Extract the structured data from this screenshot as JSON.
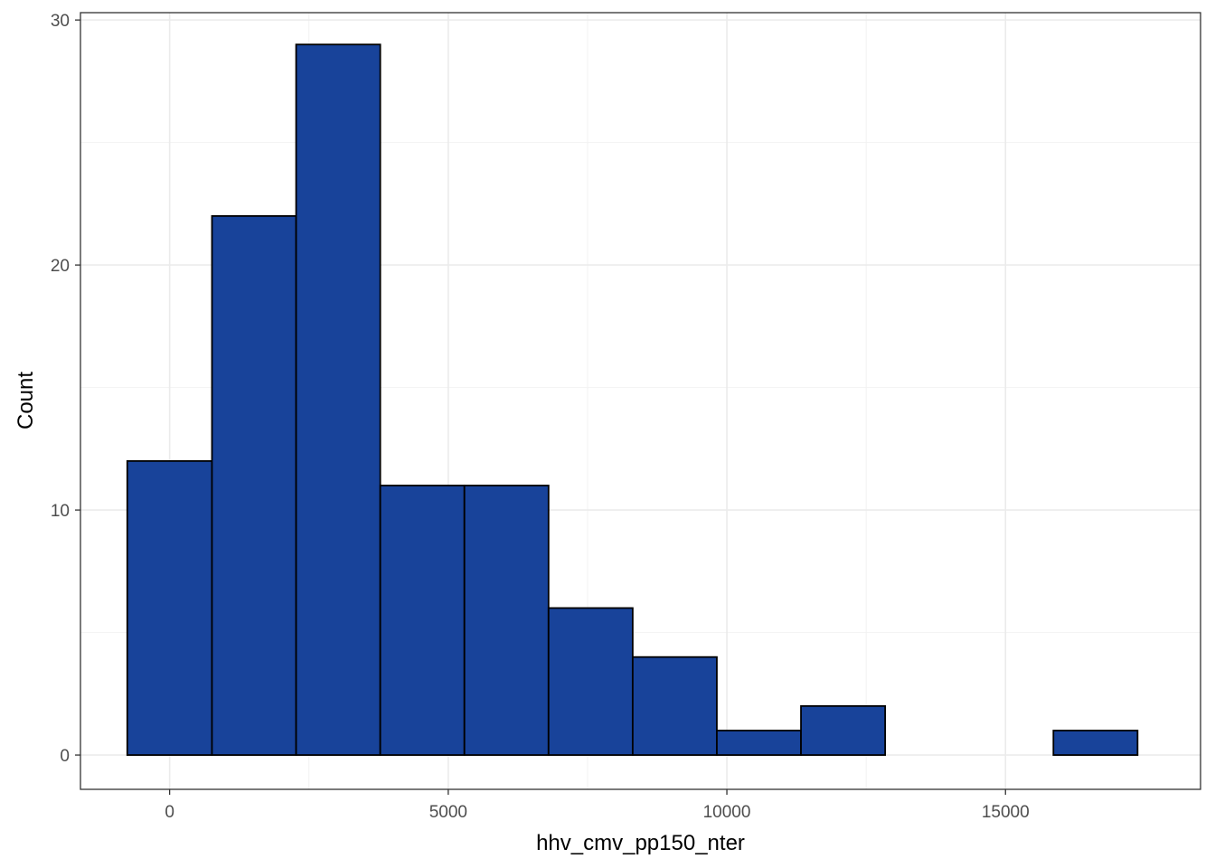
{
  "chart_data": {
    "type": "bar",
    "subtype": "histogram",
    "xlabel": "hhv_cmv_pp150_nter",
    "ylabel": "Count",
    "xlim": [
      -1600,
      18500
    ],
    "ylim": [
      -1.4,
      30.3
    ],
    "x_ticks": [
      0,
      5000,
      10000,
      15000
    ],
    "y_ticks": [
      0,
      10,
      20,
      30
    ],
    "grid": true,
    "bar_fill": "#18439A",
    "bar_stroke": "#000000",
    "bins": [
      {
        "x0": -760,
        "x1": 760,
        "count": 12
      },
      {
        "x0": 760,
        "x1": 2270,
        "count": 22
      },
      {
        "x0": 2270,
        "x1": 3780,
        "count": 29
      },
      {
        "x0": 3780,
        "x1": 5290,
        "count": 11
      },
      {
        "x0": 5290,
        "x1": 6800,
        "count": 11
      },
      {
        "x0": 6800,
        "x1": 8310,
        "count": 6
      },
      {
        "x0": 8310,
        "x1": 9820,
        "count": 4
      },
      {
        "x0": 9820,
        "x1": 11330,
        "count": 1
      },
      {
        "x0": 11330,
        "x1": 12840,
        "count": 2
      },
      {
        "x0": 12840,
        "x1": 14350,
        "count": 0
      },
      {
        "x0": 14350,
        "x1": 15860,
        "count": 0
      },
      {
        "x0": 15860,
        "x1": 17370,
        "count": 1
      }
    ]
  }
}
